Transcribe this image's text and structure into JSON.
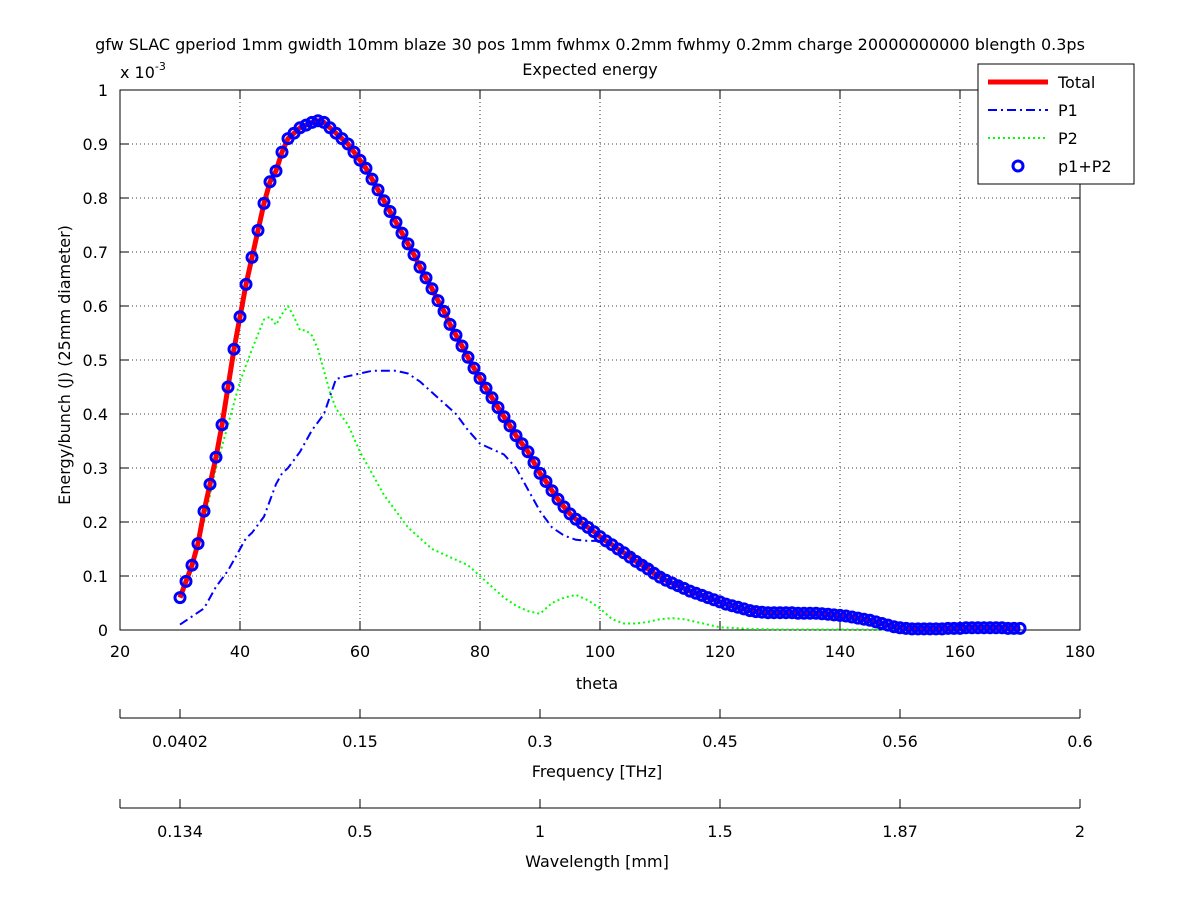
{
  "title_lines": [
    "gfw SLAC gperiod 1mm gwidth 10mm blaze 30 pos 1mm fwhmx 0.2mm fwhmy 0.2mm charge 20000000000 blength 0.3ps",
    "Expected energy"
  ],
  "chart_data": {
    "type": "line",
    "xlabel": "theta",
    "ylabel": "Energy/bunch (J) (25mm diameter)",
    "y_exponent_label": "x 10",
    "y_exponent": "-3",
    "xlim": [
      20,
      180
    ],
    "ylim": [
      0,
      1
    ],
    "x_ticks": [
      "20",
      "40",
      "60",
      "80",
      "100",
      "120",
      "140",
      "160",
      "180"
    ],
    "y_ticks": [
      "0",
      "0.1",
      "0.2",
      "0.3",
      "0.4",
      "0.5",
      "0.6",
      "0.7",
      "0.8",
      "0.9",
      "1"
    ],
    "grid": true,
    "legend_position": "top-right",
    "colors": {
      "total": "#ff0000",
      "p1": "#0000ff",
      "p2": "#00ff00",
      "p1p2": "#0000ff"
    },
    "series": [
      {
        "name": "Total",
        "x": [
          30,
          31,
          32,
          33,
          34,
          35,
          36,
          37,
          38,
          39,
          40,
          41,
          42,
          43,
          44,
          45,
          46,
          47,
          48,
          49,
          50,
          51,
          52,
          53,
          54,
          55,
          56,
          57,
          58,
          59,
          60,
          61,
          62,
          63,
          64,
          65,
          66,
          67,
          68,
          69,
          70,
          71,
          72,
          73,
          74,
          75,
          76,
          77,
          78,
          79,
          80,
          81,
          82,
          83,
          84,
          85,
          86,
          87,
          88,
          89,
          90,
          91,
          92,
          93,
          94,
          95,
          96,
          97,
          98,
          99,
          100,
          101,
          102,
          103,
          104,
          105,
          106,
          107,
          108,
          109,
          110,
          111,
          112,
          113,
          114,
          115,
          116,
          117,
          118,
          119,
          120,
          121,
          122,
          123,
          124,
          125,
          126,
          127,
          128,
          129,
          130,
          131,
          132,
          133,
          134,
          135,
          136,
          137,
          138,
          139,
          140,
          141,
          142,
          143,
          144,
          145,
          146,
          147,
          148,
          149,
          150,
          151,
          152,
          153,
          154,
          155,
          156,
          157,
          158,
          159,
          160,
          161,
          162,
          163,
          164,
          165,
          166,
          167,
          168,
          169,
          170
        ],
        "values": [
          0.06,
          0.09,
          0.12,
          0.16,
          0.22,
          0.27,
          0.32,
          0.38,
          0.45,
          0.52,
          0.58,
          0.64,
          0.69,
          0.74,
          0.79,
          0.83,
          0.85,
          0.885,
          0.91,
          0.92,
          0.93,
          0.935,
          0.94,
          0.943,
          0.94,
          0.93,
          0.92,
          0.91,
          0.9,
          0.885,
          0.87,
          0.855,
          0.835,
          0.815,
          0.795,
          0.775,
          0.755,
          0.735,
          0.715,
          0.695,
          0.672,
          0.652,
          0.632,
          0.61,
          0.59,
          0.566,
          0.546,
          0.526,
          0.505,
          0.485,
          0.466,
          0.448,
          0.43,
          0.412,
          0.395,
          0.378,
          0.36,
          0.345,
          0.33,
          0.31,
          0.29,
          0.275,
          0.258,
          0.242,
          0.228,
          0.215,
          0.205,
          0.198,
          0.19,
          0.182,
          0.173,
          0.165,
          0.158,
          0.15,
          0.143,
          0.135,
          0.127,
          0.12,
          0.113,
          0.105,
          0.098,
          0.092,
          0.087,
          0.082,
          0.077,
          0.072,
          0.068,
          0.064,
          0.06,
          0.056,
          0.052,
          0.048,
          0.045,
          0.042,
          0.039,
          0.036,
          0.034,
          0.033,
          0.032,
          0.032,
          0.032,
          0.032,
          0.032,
          0.031,
          0.031,
          0.031,
          0.031,
          0.03,
          0.029,
          0.028,
          0.027,
          0.026,
          0.024,
          0.022,
          0.02,
          0.018,
          0.015,
          0.012,
          0.009,
          0.006,
          0.004,
          0.003,
          0.002,
          0.002,
          0.002,
          0.002,
          0.002,
          0.002,
          0.003,
          0.003,
          0.003,
          0.004,
          0.004,
          0.004,
          0.004,
          0.004,
          0.004,
          0.004,
          0.003,
          0.003,
          0.003
        ]
      },
      {
        "name": "P1",
        "x": [
          30,
          32,
          34,
          35,
          36,
          38,
          40,
          41,
          42,
          44,
          45,
          46,
          47,
          48,
          50,
          52,
          54,
          56,
          58,
          60,
          62,
          64,
          66,
          68,
          70,
          72,
          74,
          76,
          78,
          80,
          82,
          84,
          86,
          88,
          90,
          92,
          94,
          96,
          98,
          100,
          102,
          104,
          106,
          108,
          110,
          112,
          114,
          116,
          118,
          120,
          122,
          124,
          126,
          128,
          130,
          135,
          140,
          145,
          150,
          155,
          160,
          165,
          170
        ],
        "values": [
          0.01,
          0.025,
          0.04,
          0.06,
          0.08,
          0.11,
          0.15,
          0.17,
          0.18,
          0.21,
          0.24,
          0.27,
          0.29,
          0.3,
          0.33,
          0.37,
          0.4,
          0.465,
          0.47,
          0.475,
          0.48,
          0.48,
          0.48,
          0.475,
          0.46,
          0.44,
          0.42,
          0.4,
          0.37,
          0.345,
          0.335,
          0.325,
          0.3,
          0.26,
          0.22,
          0.19,
          0.175,
          0.167,
          0.165,
          0.165,
          0.16,
          0.15,
          0.135,
          0.12,
          0.105,
          0.093,
          0.082,
          0.072,
          0.062,
          0.052,
          0.045,
          0.04,
          0.035,
          0.032,
          0.031,
          0.029,
          0.025,
          0.015,
          0.005,
          0.002,
          0.002,
          0.003,
          0.003
        ]
      },
      {
        "name": "P2",
        "x": [
          30,
          32,
          34,
          36,
          38,
          40,
          42,
          44,
          45,
          46,
          47,
          48,
          49,
          50,
          51,
          52,
          53,
          54,
          55,
          56,
          58,
          60,
          62,
          64,
          66,
          68,
          70,
          72,
          74,
          76,
          78,
          80,
          82,
          84,
          86,
          88,
          90,
          92,
          94,
          96,
          98,
          100,
          102,
          104,
          106,
          108,
          110,
          112,
          114,
          116,
          118,
          120,
          125,
          130,
          135,
          140,
          145,
          150
        ],
        "values": [
          0.05,
          0.12,
          0.2,
          0.3,
          0.38,
          0.46,
          0.52,
          0.575,
          0.58,
          0.565,
          0.585,
          0.6,
          0.58,
          0.555,
          0.555,
          0.545,
          0.52,
          0.48,
          0.44,
          0.41,
          0.38,
          0.33,
          0.29,
          0.25,
          0.22,
          0.19,
          0.17,
          0.15,
          0.14,
          0.13,
          0.12,
          0.1,
          0.08,
          0.06,
          0.045,
          0.035,
          0.03,
          0.05,
          0.06,
          0.065,
          0.055,
          0.04,
          0.02,
          0.012,
          0.012,
          0.015,
          0.02,
          0.022,
          0.02,
          0.015,
          0.01,
          0.005,
          0.002,
          0.001,
          0.001,
          0.001,
          0.001,
          0.001
        ]
      },
      {
        "name": "p1+P2",
        "x": [
          30,
          31,
          32,
          33,
          34,
          35,
          36,
          37,
          38,
          39,
          40,
          41,
          42,
          43,
          44,
          45,
          46,
          47,
          48,
          49,
          50,
          51,
          52,
          53,
          54,
          55,
          56,
          57,
          58,
          59,
          60,
          61,
          62,
          63,
          64,
          65,
          66,
          67,
          68,
          69,
          70,
          71,
          72,
          73,
          74,
          75,
          76,
          77,
          78,
          79,
          80,
          81,
          82,
          83,
          84,
          85,
          86,
          87,
          88,
          89,
          90,
          91,
          92,
          93,
          94,
          95,
          96,
          97,
          98,
          99,
          100,
          101,
          102,
          103,
          104,
          105,
          106,
          107,
          108,
          109,
          110,
          111,
          112,
          113,
          114,
          115,
          116,
          117,
          118,
          119,
          120,
          121,
          122,
          123,
          124,
          125,
          126,
          127,
          128,
          129,
          130,
          131,
          132,
          133,
          134,
          135,
          136,
          137,
          138,
          139,
          140,
          141,
          142,
          143,
          144,
          145,
          146,
          147,
          148,
          149,
          150,
          151,
          152,
          153,
          154,
          155,
          156,
          157,
          158,
          159,
          160,
          161,
          162,
          163,
          164,
          165,
          166,
          167,
          168,
          169,
          170
        ],
        "values": [
          0.06,
          0.09,
          0.12,
          0.16,
          0.22,
          0.27,
          0.32,
          0.38,
          0.45,
          0.52,
          0.58,
          0.64,
          0.69,
          0.74,
          0.79,
          0.83,
          0.85,
          0.885,
          0.91,
          0.92,
          0.93,
          0.935,
          0.94,
          0.943,
          0.94,
          0.93,
          0.92,
          0.91,
          0.9,
          0.885,
          0.87,
          0.855,
          0.835,
          0.815,
          0.795,
          0.775,
          0.755,
          0.735,
          0.715,
          0.695,
          0.672,
          0.652,
          0.632,
          0.61,
          0.59,
          0.566,
          0.546,
          0.526,
          0.505,
          0.485,
          0.466,
          0.448,
          0.43,
          0.412,
          0.395,
          0.378,
          0.36,
          0.345,
          0.33,
          0.31,
          0.29,
          0.275,
          0.258,
          0.242,
          0.228,
          0.215,
          0.205,
          0.198,
          0.19,
          0.182,
          0.173,
          0.165,
          0.158,
          0.15,
          0.143,
          0.135,
          0.127,
          0.12,
          0.113,
          0.105,
          0.098,
          0.092,
          0.087,
          0.082,
          0.077,
          0.072,
          0.068,
          0.064,
          0.06,
          0.056,
          0.052,
          0.048,
          0.045,
          0.042,
          0.039,
          0.036,
          0.034,
          0.033,
          0.032,
          0.032,
          0.032,
          0.032,
          0.032,
          0.031,
          0.031,
          0.031,
          0.031,
          0.03,
          0.029,
          0.028,
          0.027,
          0.026,
          0.024,
          0.022,
          0.02,
          0.018,
          0.015,
          0.012,
          0.009,
          0.006,
          0.004,
          0.003,
          0.002,
          0.002,
          0.002,
          0.002,
          0.002,
          0.002,
          0.003,
          0.003,
          0.003,
          0.004,
          0.004,
          0.004,
          0.004,
          0.004,
          0.004,
          0.004,
          0.003,
          0.003,
          0.003
        ]
      }
    ],
    "secondary_axes": [
      {
        "label": "Frequency [THz]",
        "ticks": [
          {
            "theta": 20,
            "label": ""
          },
          {
            "theta": 30,
            "label": "0.0402"
          },
          {
            "theta": 60,
            "label": "0.15"
          },
          {
            "theta": 90,
            "label": "0.3"
          },
          {
            "theta": 120,
            "label": "0.45"
          },
          {
            "theta": 150,
            "label": "0.56"
          },
          {
            "theta": 180,
            "label": "0.6"
          }
        ]
      },
      {
        "label": "Wavelength [mm]",
        "ticks": [
          {
            "theta": 20,
            "label": ""
          },
          {
            "theta": 30,
            "label": "0.134"
          },
          {
            "theta": 60,
            "label": "0.5"
          },
          {
            "theta": 90,
            "label": "1"
          },
          {
            "theta": 120,
            "label": "1.5"
          },
          {
            "theta": 150,
            "label": "1.87"
          },
          {
            "theta": 180,
            "label": "2"
          }
        ]
      }
    ]
  }
}
